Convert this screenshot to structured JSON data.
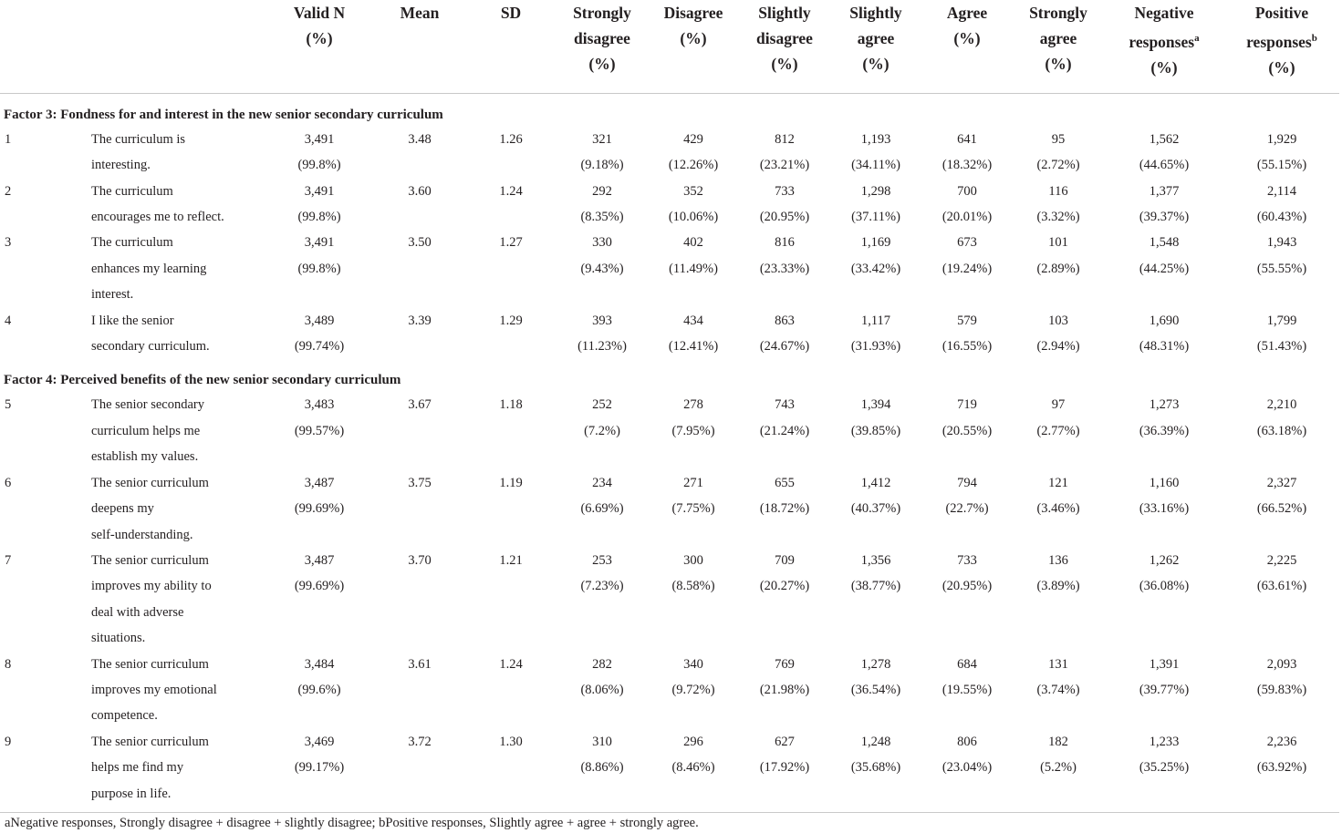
{
  "columns": [
    {
      "lines": [
        ""
      ]
    },
    {
      "lines": [
        ""
      ]
    },
    {
      "lines": [
        "Valid N",
        "(%)"
      ]
    },
    {
      "lines": [
        "Mean"
      ]
    },
    {
      "lines": [
        "SD"
      ]
    },
    {
      "lines": [
        "Strongly",
        "disagree",
        "(%)"
      ]
    },
    {
      "lines": [
        "Disagree",
        "(%)"
      ]
    },
    {
      "lines": [
        "Slightly",
        "disagree",
        "(%)"
      ]
    },
    {
      "lines": [
        "Slightly",
        "agree",
        "(%)"
      ]
    },
    {
      "lines": [
        "Agree",
        "(%)"
      ]
    },
    {
      "lines": [
        "Strongly",
        "agree",
        "(%)"
      ]
    },
    {
      "lines": [
        "Negative",
        "responses",
        "(%)"
      ],
      "sup": "a"
    },
    {
      "lines": [
        "Positive",
        "responses",
        "(%)"
      ],
      "sup": "b"
    }
  ],
  "sections": [
    {
      "title": "Factor 3: Fondness for and interest in the new senior secondary curriculum",
      "rows": [
        {
          "no": "1",
          "item": [
            "The curriculum is",
            "interesting."
          ],
          "valid_n": [
            "3,491",
            "(99.8%)"
          ],
          "mean": "3.48",
          "sd": "1.26",
          "cells": [
            [
              "321",
              "(9.18%)"
            ],
            [
              "429",
              "(12.26%)"
            ],
            [
              "812",
              "(23.21%)"
            ],
            [
              "1,193",
              "(34.11%)"
            ],
            [
              "641",
              "(18.32%)"
            ],
            [
              "95",
              "(2.72%)"
            ],
            [
              "1,562",
              "(44.65%)"
            ],
            [
              "1,929",
              "(55.15%)"
            ]
          ]
        },
        {
          "no": "2",
          "item": [
            "The curriculum",
            "encourages me to reflect."
          ],
          "valid_n": [
            "3,491",
            "(99.8%)"
          ],
          "mean": "3.60",
          "sd": "1.24",
          "cells": [
            [
              "292",
              "(8.35%)"
            ],
            [
              "352",
              "(10.06%)"
            ],
            [
              "733",
              "(20.95%)"
            ],
            [
              "1,298",
              "(37.11%)"
            ],
            [
              "700",
              "(20.01%)"
            ],
            [
              "116",
              "(3.32%)"
            ],
            [
              "1,377",
              "(39.37%)"
            ],
            [
              "2,114",
              "(60.43%)"
            ]
          ]
        },
        {
          "no": "3",
          "item": [
            "The curriculum",
            "enhances my learning",
            "interest."
          ],
          "valid_n": [
            "3,491",
            "(99.8%)"
          ],
          "mean": "3.50",
          "sd": "1.27",
          "cells": [
            [
              "330",
              "(9.43%)"
            ],
            [
              "402",
              "(11.49%)"
            ],
            [
              "816",
              "(23.33%)"
            ],
            [
              "1,169",
              "(33.42%)"
            ],
            [
              "673",
              "(19.24%)"
            ],
            [
              "101",
              "(2.89%)"
            ],
            [
              "1,548",
              "(44.25%)"
            ],
            [
              "1,943",
              "(55.55%)"
            ]
          ]
        },
        {
          "no": "4",
          "item": [
            "I like the senior",
            "secondary curriculum."
          ],
          "valid_n": [
            "3,489",
            "(99.74%)"
          ],
          "mean": "3.39",
          "sd": "1.29",
          "cells": [
            [
              "393",
              "(11.23%)"
            ],
            [
              "434",
              "(12.41%)"
            ],
            [
              "863",
              "(24.67%)"
            ],
            [
              "1,117",
              "(31.93%)"
            ],
            [
              "579",
              "(16.55%)"
            ],
            [
              "103",
              "(2.94%)"
            ],
            [
              "1,690",
              "(48.31%)"
            ],
            [
              "1,799",
              "(51.43%)"
            ]
          ]
        }
      ]
    },
    {
      "title": "Factor 4: Perceived benefits of the new senior secondary curriculum",
      "rows": [
        {
          "no": "5",
          "item": [
            "The senior secondary",
            "curriculum helps me",
            "establish my values."
          ],
          "valid_n": [
            "3,483",
            "(99.57%)"
          ],
          "mean": "3.67",
          "sd": "1.18",
          "cells": [
            [
              "252",
              "(7.2%)"
            ],
            [
              "278",
              "(7.95%)"
            ],
            [
              "743",
              "(21.24%)"
            ],
            [
              "1,394",
              "(39.85%)"
            ],
            [
              "719",
              "(20.55%)"
            ],
            [
              "97",
              "(2.77%)"
            ],
            [
              "1,273",
              "(36.39%)"
            ],
            [
              "2,210",
              "(63.18%)"
            ]
          ]
        },
        {
          "no": "6",
          "item": [
            "The senior curriculum",
            "deepens my",
            "self-understanding."
          ],
          "valid_n": [
            "3,487",
            "(99.69%)"
          ],
          "mean": "3.75",
          "sd": "1.19",
          "cells": [
            [
              "234",
              "(6.69%)"
            ],
            [
              "271",
              "(7.75%)"
            ],
            [
              "655",
              "(18.72%)"
            ],
            [
              "1,412",
              "(40.37%)"
            ],
            [
              "794",
              "(22.7%)"
            ],
            [
              "121",
              "(3.46%)"
            ],
            [
              "1,160",
              "(33.16%)"
            ],
            [
              "2,327",
              "(66.52%)"
            ]
          ]
        },
        {
          "no": "7",
          "item": [
            "The senior curriculum",
            "improves my ability to",
            "deal with adverse",
            "situations."
          ],
          "valid_n": [
            "3,487",
            "(99.69%)"
          ],
          "mean": "3.70",
          "sd": "1.21",
          "cells": [
            [
              "253",
              "(7.23%)"
            ],
            [
              "300",
              "(8.58%)"
            ],
            [
              "709",
              "(20.27%)"
            ],
            [
              "1,356",
              "(38.77%)"
            ],
            [
              "733",
              "(20.95%)"
            ],
            [
              "136",
              "(3.89%)"
            ],
            [
              "1,262",
              "(36.08%)"
            ],
            [
              "2,225",
              "(63.61%)"
            ]
          ]
        },
        {
          "no": "8",
          "item": [
            "The senior curriculum",
            "improves my emotional",
            "competence."
          ],
          "valid_n": [
            "3,484",
            "(99.6%)"
          ],
          "mean": "3.61",
          "sd": "1.24",
          "cells": [
            [
              "282",
              "(8.06%)"
            ],
            [
              "340",
              "(9.72%)"
            ],
            [
              "769",
              "(21.98%)"
            ],
            [
              "1,278",
              "(36.54%)"
            ],
            [
              "684",
              "(19.55%)"
            ],
            [
              "131",
              "(3.74%)"
            ],
            [
              "1,391",
              "(39.77%)"
            ],
            [
              "2,093",
              "(59.83%)"
            ]
          ]
        },
        {
          "no": "9",
          "item": [
            "The senior curriculum",
            "helps me find my",
            "purpose in life."
          ],
          "valid_n": [
            "3,469",
            "(99.17%)"
          ],
          "mean": "3.72",
          "sd": "1.30",
          "cells": [
            [
              "310",
              "(8.86%)"
            ],
            [
              "296",
              "(8.46%)"
            ],
            [
              "627",
              "(17.92%)"
            ],
            [
              "1,248",
              "(35.68%)"
            ],
            [
              "806",
              "(23.04%)"
            ],
            [
              "182",
              "(5.2%)"
            ],
            [
              "1,233",
              "(35.25%)"
            ],
            [
              "2,236",
              "(63.92%)"
            ]
          ]
        }
      ]
    }
  ],
  "footnote": "aNegative responses, Strongly disagree + disagree + slightly disagree; bPositive responses, Slightly agree + agree + strongly agree."
}
